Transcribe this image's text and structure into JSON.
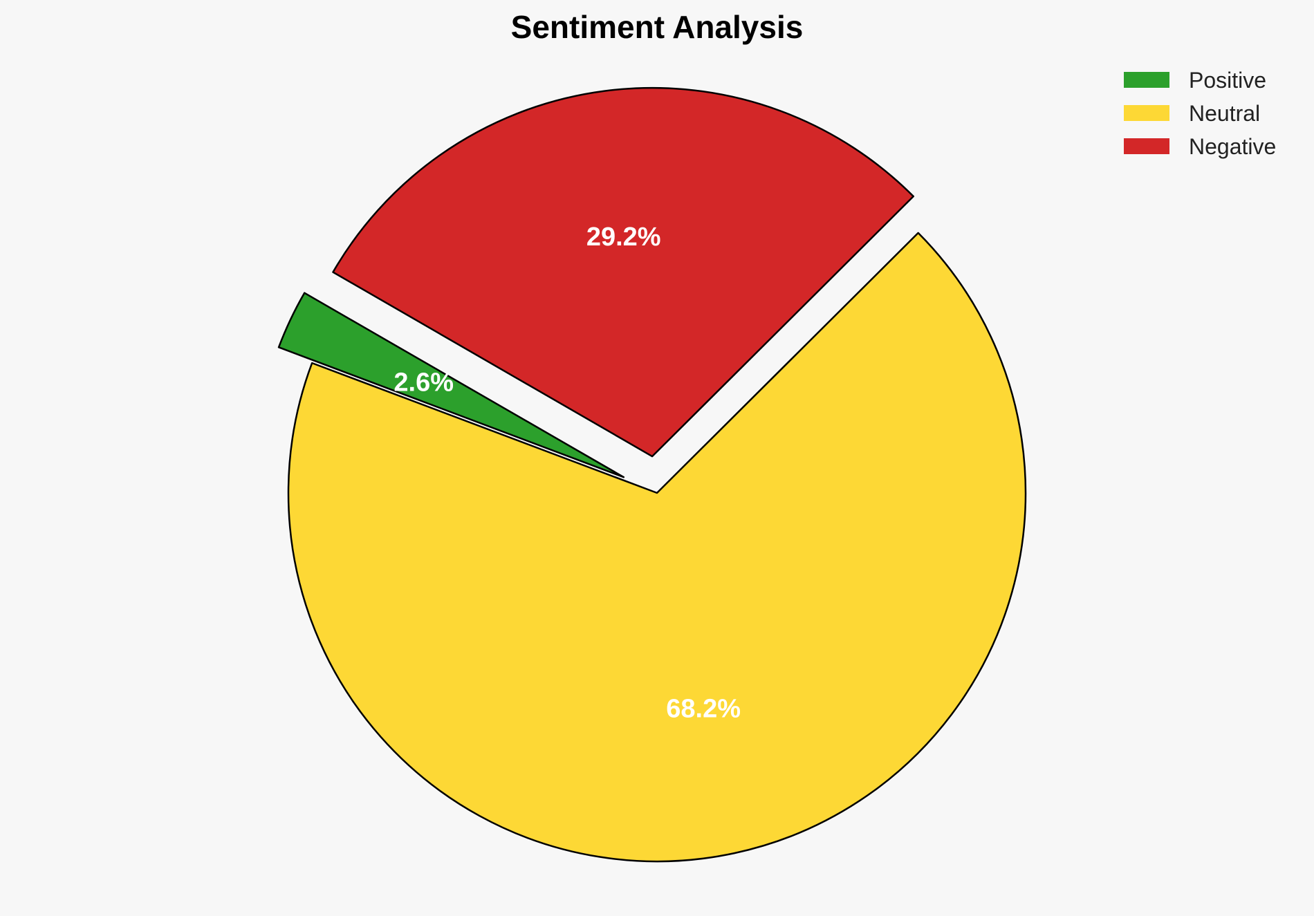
{
  "chart_data": {
    "type": "pie",
    "title": "Sentiment Analysis",
    "categories": [
      "Positive",
      "Neutral",
      "Negative"
    ],
    "values": [
      2.6,
      68.2,
      29.2
    ],
    "labels": [
      "2.6%",
      "68.2%",
      "29.2%"
    ],
    "colors": [
      "#2ca02c",
      "#fdd835",
      "#d32728"
    ],
    "exploded": [
      "Positive",
      "Negative"
    ],
    "edge_color": "#000000",
    "legend_position": "top-right"
  }
}
